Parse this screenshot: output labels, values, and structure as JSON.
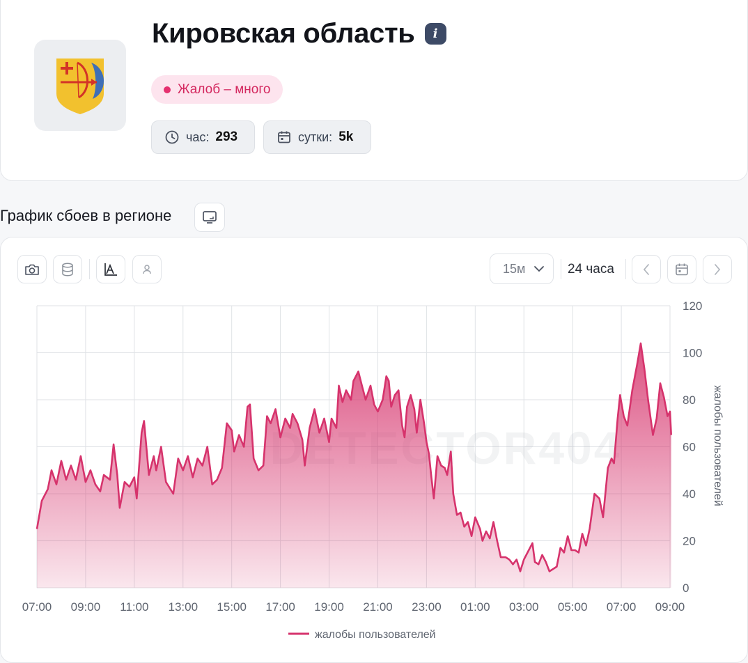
{
  "region": {
    "title": "Кировская область",
    "info_icon": "i",
    "status": "Жалоб – много",
    "stats": [
      {
        "icon": "clock-icon",
        "label": "час:",
        "value": "293"
      },
      {
        "icon": "calendar-icon",
        "label": "сутки:",
        "value": "5k"
      }
    ]
  },
  "chart_section": {
    "title": "График сбоев в регионе",
    "toolbar": {
      "left_icons": [
        "camera-icon",
        "database-icon",
        "chart-area-icon",
        "user-icon"
      ],
      "interval": "15м",
      "range": "24 часа",
      "right_icons": [
        "chevron-left-icon",
        "calendar-icon",
        "chevron-right-icon"
      ]
    },
    "watermark": "DETECTOR404"
  },
  "colors": {
    "accent": "#d6336c",
    "status": "#e5306f",
    "badge": "#3d4a66"
  },
  "chart_data": {
    "type": "area",
    "ylabel": "жалобы пользователей",
    "ylim": [
      0,
      120
    ],
    "yticks": [
      0,
      20,
      40,
      60,
      80,
      100,
      120
    ],
    "xticks": [
      "07:00",
      "09:00",
      "11:00",
      "13:00",
      "15:00",
      "17:00",
      "19:00",
      "21:00",
      "23:00",
      "01:00",
      "03:00",
      "05:00",
      "07:00",
      "09:00"
    ],
    "xlim_hours": [
      0,
      26
    ],
    "grid": true,
    "legend": "bottom",
    "series": [
      {
        "name": "жалобы пользователей",
        "color": "#d6336c",
        "points": [
          [
            0.0,
            25
          ],
          [
            0.2,
            37
          ],
          [
            0.45,
            42
          ],
          [
            0.6,
            50
          ],
          [
            0.8,
            44
          ],
          [
            1.0,
            54
          ],
          [
            1.2,
            46
          ],
          [
            1.4,
            52
          ],
          [
            1.6,
            46
          ],
          [
            1.8,
            56
          ],
          [
            2.0,
            45
          ],
          [
            2.2,
            50
          ],
          [
            2.4,
            44
          ],
          [
            2.6,
            41
          ],
          [
            2.75,
            48
          ],
          [
            3.0,
            46
          ],
          [
            3.15,
            61
          ],
          [
            3.3,
            48
          ],
          [
            3.4,
            34
          ],
          [
            3.6,
            45
          ],
          [
            3.8,
            43
          ],
          [
            4.0,
            47
          ],
          [
            4.1,
            38
          ],
          [
            4.3,
            66
          ],
          [
            4.4,
            71
          ],
          [
            4.6,
            48
          ],
          [
            4.8,
            56
          ],
          [
            4.9,
            50
          ],
          [
            5.1,
            60
          ],
          [
            5.3,
            45
          ],
          [
            5.6,
            40
          ],
          [
            5.8,
            55
          ],
          [
            6.0,
            50
          ],
          [
            6.2,
            56
          ],
          [
            6.4,
            47
          ],
          [
            6.6,
            55
          ],
          [
            6.8,
            52
          ],
          [
            7.0,
            60
          ],
          [
            7.2,
            44
          ],
          [
            7.4,
            46
          ],
          [
            7.6,
            51
          ],
          [
            7.8,
            70
          ],
          [
            8.0,
            67
          ],
          [
            8.1,
            58
          ],
          [
            8.3,
            65
          ],
          [
            8.5,
            60
          ],
          [
            8.65,
            77
          ],
          [
            8.75,
            78
          ],
          [
            8.9,
            55
          ],
          [
            9.1,
            50
          ],
          [
            9.3,
            52
          ],
          [
            9.45,
            73
          ],
          [
            9.6,
            70
          ],
          [
            9.8,
            76
          ],
          [
            10.0,
            64
          ],
          [
            10.2,
            72
          ],
          [
            10.4,
            68
          ],
          [
            10.5,
            74
          ],
          [
            10.7,
            70
          ],
          [
            10.9,
            63
          ],
          [
            11.0,
            52
          ],
          [
            11.2,
            68
          ],
          [
            11.4,
            76
          ],
          [
            11.6,
            66
          ],
          [
            11.8,
            72
          ],
          [
            12.0,
            62
          ],
          [
            12.1,
            72
          ],
          [
            12.3,
            68
          ],
          [
            12.4,
            86
          ],
          [
            12.55,
            79
          ],
          [
            12.7,
            84
          ],
          [
            12.9,
            80
          ],
          [
            13.0,
            88
          ],
          [
            13.2,
            92
          ],
          [
            13.35,
            86
          ],
          [
            13.5,
            80
          ],
          [
            13.7,
            86
          ],
          [
            13.85,
            78
          ],
          [
            14.0,
            75
          ],
          [
            14.2,
            80
          ],
          [
            14.35,
            90
          ],
          [
            14.45,
            88
          ],
          [
            14.55,
            77
          ],
          [
            14.7,
            82
          ],
          [
            14.85,
            84
          ],
          [
            15.0,
            69
          ],
          [
            15.1,
            64
          ],
          [
            15.2,
            77
          ],
          [
            15.35,
            82
          ],
          [
            15.5,
            76
          ],
          [
            15.6,
            66
          ],
          [
            15.75,
            80
          ],
          [
            15.9,
            70
          ],
          [
            16.0,
            62
          ],
          [
            16.1,
            57
          ],
          [
            16.2,
            47
          ],
          [
            16.3,
            38
          ],
          [
            16.45,
            56
          ],
          [
            16.6,
            52
          ],
          [
            16.75,
            51
          ],
          [
            16.85,
            48
          ],
          [
            17.0,
            58
          ],
          [
            17.1,
            40
          ],
          [
            17.25,
            31
          ],
          [
            17.4,
            32
          ],
          [
            17.55,
            26
          ],
          [
            17.7,
            28
          ],
          [
            17.85,
            22
          ],
          [
            18.0,
            30
          ],
          [
            18.2,
            25
          ],
          [
            18.3,
            20
          ],
          [
            18.45,
            24
          ],
          [
            18.6,
            21
          ],
          [
            18.75,
            28
          ],
          [
            18.9,
            20
          ],
          [
            19.05,
            13
          ],
          [
            19.25,
            13
          ],
          [
            19.4,
            12
          ],
          [
            19.55,
            10
          ],
          [
            19.7,
            12
          ],
          [
            19.85,
            7
          ],
          [
            20.0,
            12
          ],
          [
            20.2,
            16
          ],
          [
            20.35,
            19
          ],
          [
            20.45,
            11
          ],
          [
            20.6,
            10
          ],
          [
            20.75,
            14
          ],
          [
            20.9,
            11
          ],
          [
            21.05,
            7
          ],
          [
            21.2,
            8
          ],
          [
            21.35,
            9
          ],
          [
            21.5,
            17
          ],
          [
            21.65,
            15
          ],
          [
            21.8,
            22
          ],
          [
            21.95,
            16
          ],
          [
            22.1,
            16
          ],
          [
            22.25,
            15
          ],
          [
            22.4,
            23
          ],
          [
            22.55,
            18
          ],
          [
            22.7,
            25
          ],
          [
            22.9,
            40
          ],
          [
            23.1,
            38
          ],
          [
            23.25,
            30
          ],
          [
            23.45,
            51
          ],
          [
            23.6,
            55
          ],
          [
            23.7,
            53
          ],
          [
            23.85,
            72
          ],
          [
            23.95,
            82
          ],
          [
            24.1,
            73
          ],
          [
            24.25,
            69
          ],
          [
            24.45,
            84
          ],
          [
            24.65,
            95
          ],
          [
            24.8,
            104
          ],
          [
            24.95,
            93
          ],
          [
            25.1,
            80
          ],
          [
            25.3,
            65
          ],
          [
            25.45,
            72
          ],
          [
            25.6,
            87
          ],
          [
            25.75,
            81
          ],
          [
            25.9,
            73
          ],
          [
            26.0,
            75
          ],
          [
            26.05,
            65
          ]
        ]
      }
    ]
  }
}
